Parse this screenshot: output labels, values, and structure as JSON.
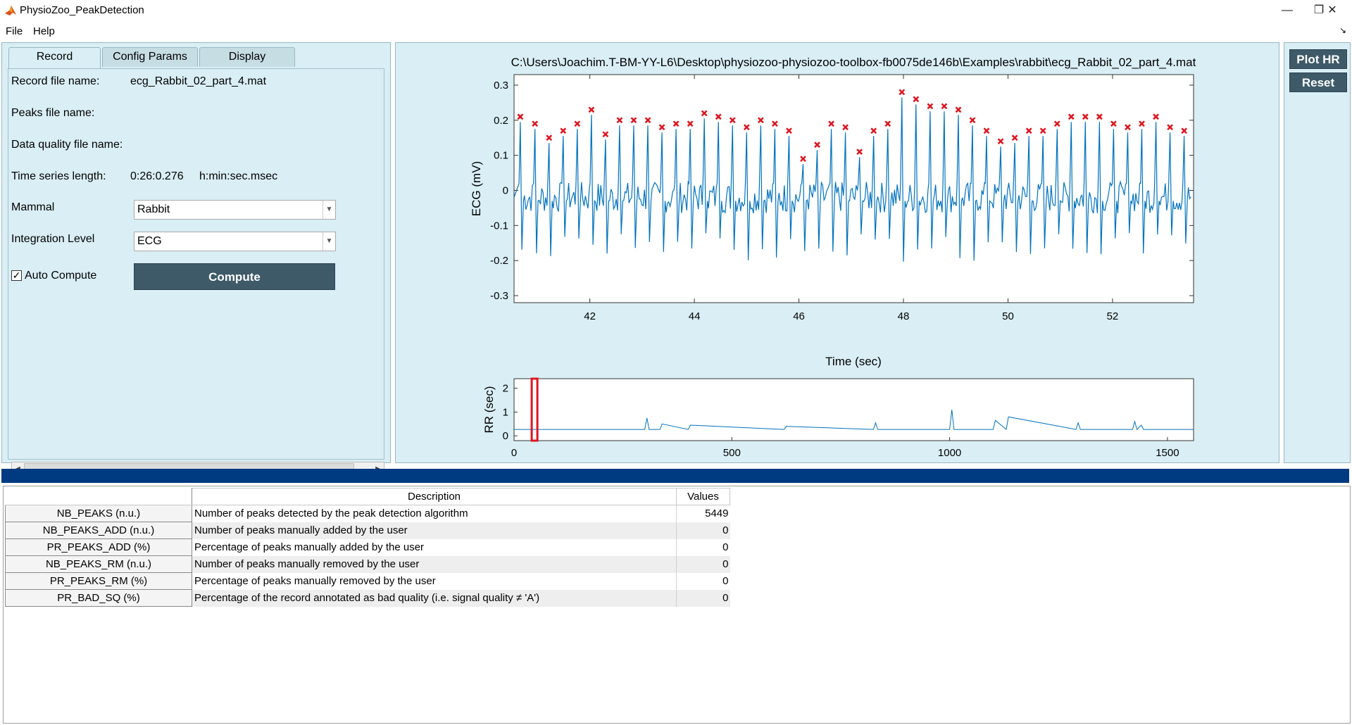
{
  "window": {
    "title": "PhysioZoo_PeakDetection",
    "minimize_glyph": "—",
    "restore_glyph": "❐",
    "close_glyph": "✕"
  },
  "menu": {
    "items": [
      "File",
      "Help"
    ],
    "corner_glyph": "↘"
  },
  "tabs": [
    {
      "label": "Record"
    },
    {
      "label": "Config Params"
    },
    {
      "label": "Display"
    }
  ],
  "record": {
    "record_file_label": "Record file name:",
    "record_file_value": "ecg_Rabbit_02_part_4.mat",
    "peaks_file_label": "Peaks file name:",
    "quality_file_label": "Data quality file name:",
    "length_label": "Time series length:",
    "length_value": "0:26:0.276",
    "length_unit": "h:min:sec.msec",
    "mammal_label": "Mammal",
    "mammal_value": "Rabbit",
    "integration_label": "Integration Level",
    "integration_value": "ECG",
    "auto_compute_label": "Auto Compute",
    "auto_compute_checked": true,
    "compute_label": "Compute"
  },
  "side_buttons": {
    "plot_hr": "Plot HR",
    "reset": "Reset"
  },
  "chart_data": [
    {
      "type": "line",
      "title": "C:\\Users\\Joachim.T-BM-YY-L6\\Desktop\\physiozoo-physiozoo-toolbox-fb0075de146b\\Examples\\rabbit\\ecg_Rabbit_02_part_4.mat",
      "xlabel": "Time (sec)",
      "ylabel": "ECG (mV)",
      "xlim": [
        40.55,
        53.55
      ],
      "ylim": [
        -0.32,
        0.33
      ],
      "xticks": [
        42,
        44,
        46,
        48,
        50,
        52
      ],
      "yticks": [
        -0.3,
        -0.2,
        -0.1,
        0,
        0.1,
        0.2,
        0.3
      ],
      "ytick_labels": [
        "-0.3",
        "-0.2",
        "-0.1",
        "0",
        "0.1",
        "0.2",
        "0.3"
      ],
      "line_color": "#0072bd",
      "marker_color": "#e0141e",
      "series": [
        {
          "marker": "x",
          "x": [
            40.67,
            40.95,
            41.22,
            41.49,
            41.76,
            42.03,
            42.3,
            42.57,
            42.84,
            43.11,
            43.38,
            43.65,
            43.92,
            44.19,
            44.46,
            44.73,
            45.0,
            45.27,
            45.54,
            45.81,
            46.08,
            46.35,
            46.62,
            46.89,
            47.16,
            47.43,
            47.7,
            47.97,
            48.24,
            48.51,
            48.78,
            49.05,
            49.32,
            49.59,
            49.86,
            50.13,
            50.4,
            50.67,
            50.94,
            51.21,
            51.48,
            51.75,
            52.02,
            52.29,
            52.56,
            52.83,
            53.1,
            53.37
          ],
          "y": [
            0.21,
            0.19,
            0.15,
            0.17,
            0.19,
            0.23,
            0.16,
            0.2,
            0.2,
            0.2,
            0.18,
            0.19,
            0.19,
            0.22,
            0.21,
            0.2,
            0.18,
            0.2,
            0.19,
            0.17,
            0.09,
            0.13,
            0.19,
            0.18,
            0.11,
            0.17,
            0.19,
            0.28,
            0.26,
            0.24,
            0.24,
            0.23,
            0.2,
            0.17,
            0.14,
            0.15,
            0.17,
            0.17,
            0.19,
            0.21,
            0.21,
            0.21,
            0.19,
            0.18,
            0.19,
            0.21,
            0.18,
            0.17
          ]
        }
      ]
    },
    {
      "type": "line",
      "xlabel": "",
      "ylabel": "RR (sec)",
      "xlim": [
        0,
        1560
      ],
      "ylim": [
        -0.2,
        2.4
      ],
      "xticks": [
        0,
        500,
        1000,
        1500
      ],
      "yticks": [
        0,
        1,
        2
      ],
      "selection_window": [
        40.55,
        53.55
      ],
      "series": [
        {
          "x": [
            0,
            300,
            305,
            310,
            335,
            340,
            400,
            405,
            620,
            625,
            825,
            830,
            835,
            1000,
            1005,
            1010,
            1100,
            1105,
            1130,
            1135,
            1290,
            1295,
            1300,
            1420,
            1425,
            1430,
            1440,
            1445,
            1460,
            1560
          ],
          "y": [
            0.27,
            0.27,
            0.75,
            0.27,
            0.27,
            0.5,
            0.27,
            0.45,
            0.27,
            0.4,
            0.27,
            0.55,
            0.27,
            0.27,
            1.1,
            0.27,
            0.27,
            0.65,
            0.27,
            0.8,
            0.27,
            0.55,
            0.27,
            0.27,
            0.6,
            0.27,
            0.45,
            0.27,
            0.27,
            0.27
          ]
        }
      ]
    }
  ],
  "results": {
    "headers": {
      "description": "Description",
      "values": "Values"
    },
    "rows": [
      {
        "name": "NB_PEAKS (n.u.)",
        "description": "Number of peaks detected by the peak detection algorithm",
        "value": "5449"
      },
      {
        "name": "NB_PEAKS_ADD (n.u.)",
        "description": "Number of peaks manually added by the user",
        "value": "0"
      },
      {
        "name": "PR_PEAKS_ADD (%)",
        "description": "Percentage of peaks manually added by the user",
        "value": "0"
      },
      {
        "name": "NB_PEAKS_RM (n.u.)",
        "description": "Number of peaks manually removed by the user",
        "value": "0"
      },
      {
        "name": "PR_PEAKS_RM (%)",
        "description": "Percentage of peaks manually removed by the user",
        "value": "0"
      },
      {
        "name": "PR_BAD_SQ (%)",
        "description": "Percentage of the record annotated as bad quality (i.e. signal quality ≠ 'A')",
        "value": "0"
      }
    ]
  },
  "colors": {
    "panel_bg": "#d9eef5",
    "button_bg": "#3e5a68",
    "splitter": "#003a80",
    "line": "#0072bd",
    "marker": "#e0141e"
  }
}
